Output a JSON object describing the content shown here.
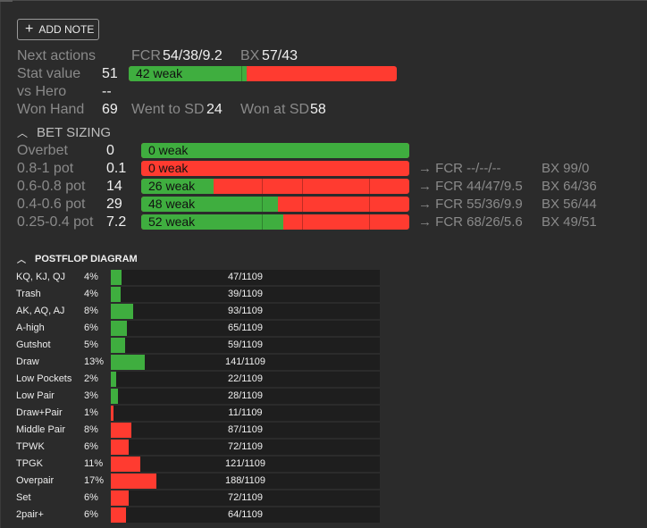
{
  "toolbar": {
    "add_note_label": "ADD NOTE"
  },
  "colors": {
    "green": "#3fae3f",
    "red": "#ff3b30",
    "bg": "#2b2b2b"
  },
  "stats": {
    "next_actions_label": "Next actions",
    "fcr_label": "FCR",
    "fcr_value": "54/38/9.2",
    "bx_label": "BX",
    "bx_value": "57/43",
    "stat_value_label": "Stat value",
    "stat_value": "51",
    "stat_bar_text": "42 weak",
    "stat_bar_green_fraction": 0.44,
    "vs_hero_label": "vs Hero",
    "vs_hero_value": "--",
    "won_hand_label": "Won Hand",
    "won_hand_value": "69",
    "went_sd_label": "Went to SD",
    "went_sd_value": "24",
    "won_sd_label": "Won at SD",
    "won_sd_value": "58"
  },
  "bet_sizing": {
    "title": "BET SIZING",
    "rows": [
      {
        "label": "Overbet",
        "value": "0",
        "bar_text": "0 weak",
        "green_fraction": 1.0,
        "fcr": "",
        "bx": ""
      },
      {
        "label": "0.8-1 pot",
        "value": "0.1",
        "bar_text": "0 weak",
        "green_fraction": 0.0,
        "fcr": "→ FCR --/--/--",
        "bx": "BX 99/0"
      },
      {
        "label": "0.6-0.8 pot",
        "value": "14",
        "bar_text": "26 weak",
        "green_fraction": 0.27,
        "fcr": "→ FCR 44/47/9.5",
        "bx": "BX 64/36"
      },
      {
        "label": "0.4-0.6 pot",
        "value": "29",
        "bar_text": "48 weak",
        "green_fraction": 0.51,
        "fcr": "→ FCR 55/36/9.9",
        "bx": "BX 56/44"
      },
      {
        "label": "0.25-0.4 pot",
        "value": "7.2",
        "bar_text": "52 weak",
        "green_fraction": 0.53,
        "fcr": "→ FCR 68/26/5.6",
        "bx": "BX 49/51"
      }
    ]
  },
  "postflop": {
    "title": "POSTFLOP DIAGRAM",
    "rows": [
      {
        "name": "KQ, KJ, QJ",
        "pct": "4%",
        "count": "47/1109",
        "fraction": 0.04,
        "color": "#3fae3f"
      },
      {
        "name": "Trash",
        "pct": "4%",
        "count": "39/1109",
        "fraction": 0.035,
        "color": "#3fae3f"
      },
      {
        "name": "AK, AQ, AJ",
        "pct": "8%",
        "count": "93/1109",
        "fraction": 0.083,
        "color": "#3fae3f"
      },
      {
        "name": "A-high",
        "pct": "6%",
        "count": "65/1109",
        "fraction": 0.059,
        "color": "#3fae3f"
      },
      {
        "name": "Gutshot",
        "pct": "5%",
        "count": "59/1109",
        "fraction": 0.053,
        "color": "#3fae3f"
      },
      {
        "name": "Draw",
        "pct": "13%",
        "count": "141/1109",
        "fraction": 0.127,
        "color": "#3fae3f"
      },
      {
        "name": "Low Pockets",
        "pct": "2%",
        "count": "22/1109",
        "fraction": 0.02,
        "color": "#3fae3f"
      },
      {
        "name": "Low Pair",
        "pct": "3%",
        "count": "28/1109",
        "fraction": 0.025,
        "color": "#3fae3f"
      },
      {
        "name": "Draw+Pair",
        "pct": "1%",
        "count": "11/1109",
        "fraction": 0.01,
        "color": "#ff3b30"
      },
      {
        "name": "Middle Pair",
        "pct": "8%",
        "count": "87/1109",
        "fraction": 0.078,
        "color": "#ff3b30"
      },
      {
        "name": "TPWK",
        "pct": "6%",
        "count": "72/1109",
        "fraction": 0.065,
        "color": "#ff3b30"
      },
      {
        "name": "TPGK",
        "pct": "11%",
        "count": "121/1109",
        "fraction": 0.109,
        "color": "#ff3b30"
      },
      {
        "name": "Overpair",
        "pct": "17%",
        "count": "188/1109",
        "fraction": 0.17,
        "color": "#ff3b30"
      },
      {
        "name": "Set",
        "pct": "6%",
        "count": "72/1109",
        "fraction": 0.065,
        "color": "#ff3b30"
      },
      {
        "name": "2pair+",
        "pct": "6%",
        "count": "64/1109",
        "fraction": 0.058,
        "color": "#ff3b30"
      }
    ]
  }
}
